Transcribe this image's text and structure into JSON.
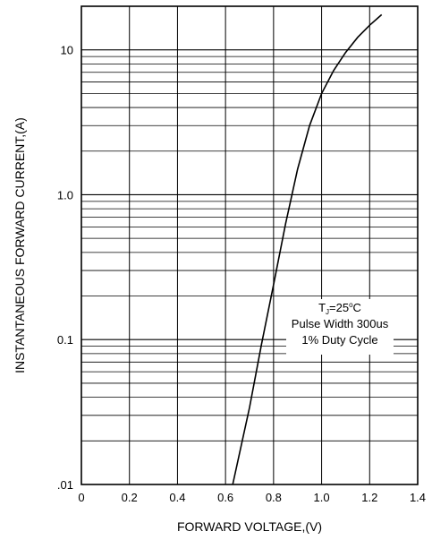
{
  "chart_data": {
    "type": "line",
    "xlabel": "FORWARD VOLTAGE,(V)",
    "ylabel": "INSTANTANEOUS FORWARD CURRENT,(A)",
    "xlim": [
      0,
      1.4
    ],
    "ylim": [
      0.01,
      20
    ],
    "y_scale": "log",
    "grid": true,
    "x_ticks": [
      0,
      0.2,
      0.4,
      0.6,
      0.8,
      1.0,
      1.2,
      1.4
    ],
    "x_tick_labels": [
      "0",
      "0.2",
      "0.4",
      "0.6",
      "0.8",
      "1.0",
      "1.2",
      "1.4"
    ],
    "y_ticks": [
      0.01,
      0.1,
      1.0,
      10
    ],
    "y_tick_labels": [
      ".01",
      "0.1",
      "1.0",
      "10"
    ],
    "series": [
      {
        "x": [
          0.63,
          0.7,
          0.75,
          0.8,
          0.85,
          0.9,
          0.95,
          1.0,
          1.05,
          1.1,
          1.15,
          1.2,
          1.25
        ],
        "y": [
          0.01,
          0.034,
          0.093,
          0.24,
          0.63,
          1.5,
          3.0,
          5.0,
          7.2,
          9.6,
          12.2,
          14.8,
          17.5
        ]
      }
    ],
    "annotation": {
      "line1_prefix": "T",
      "line1_sub": "J",
      "line1_value": "=25",
      "line1_deg": "o",
      "line1_unit": "C",
      "line2": "Pulse Width 300us",
      "line3": "1% Duty Cycle"
    }
  },
  "style": {
    "line_color": "#000000",
    "grid_color": "#000000",
    "background": "#ffffff"
  }
}
